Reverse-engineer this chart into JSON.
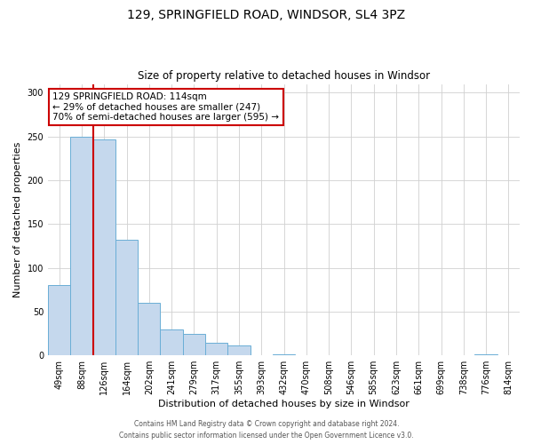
{
  "title": "129, SPRINGFIELD ROAD, WINDSOR, SL4 3PZ",
  "subtitle": "Size of property relative to detached houses in Windsor",
  "xlabel": "Distribution of detached houses by size in Windsor",
  "ylabel": "Number of detached properties",
  "bin_labels": [
    "49sqm",
    "88sqm",
    "126sqm",
    "164sqm",
    "202sqm",
    "241sqm",
    "279sqm",
    "317sqm",
    "355sqm",
    "393sqm",
    "432sqm",
    "470sqm",
    "508sqm",
    "546sqm",
    "585sqm",
    "623sqm",
    "661sqm",
    "699sqm",
    "738sqm",
    "776sqm",
    "814sqm"
  ],
  "bar_heights": [
    80,
    250,
    247,
    132,
    60,
    30,
    25,
    14,
    11,
    0,
    1,
    0,
    0,
    0,
    0,
    0,
    0,
    0,
    0,
    1,
    0
  ],
  "bar_color": "#c5d8ed",
  "bar_edge_color": "#6aaed6",
  "vline_x_index": 1.5,
  "vline_color": "#cc0000",
  "annotation_text": "129 SPRINGFIELD ROAD: 114sqm\n← 29% of detached houses are smaller (247)\n70% of semi-detached houses are larger (595) →",
  "annotation_box_color": "#ffffff",
  "annotation_box_edge_color": "#cc0000",
  "ylim": [
    0,
    310
  ],
  "yticks": [
    0,
    50,
    100,
    150,
    200,
    250,
    300
  ],
  "footer_line1": "Contains HM Land Registry data © Crown copyright and database right 2024.",
  "footer_line2": "Contains public sector information licensed under the Open Government Licence v3.0.",
  "background_color": "#ffffff",
  "grid_color": "#d0d0d0",
  "title_fontsize": 10,
  "subtitle_fontsize": 8.5,
  "ylabel_fontsize": 8,
  "xlabel_fontsize": 8,
  "tick_fontsize": 7,
  "annotation_fontsize": 7.5,
  "footer_fontsize": 5.5
}
